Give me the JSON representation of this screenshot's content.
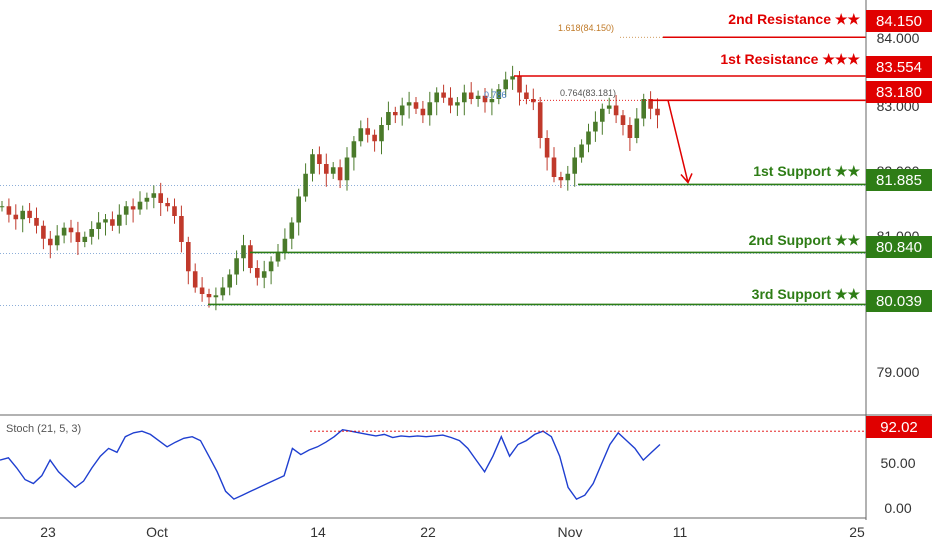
{
  "chart_data": {
    "type": "candlestick",
    "main_panel": {
      "y_ticks": [
        "84.000",
        "83.000",
        "82.000",
        "81.000",
        "79.000"
      ],
      "levels": [
        {
          "id": "r2",
          "label": "2nd Resistance ★★",
          "value": "84.150",
          "price": 84.15,
          "color": "#e00000"
        },
        {
          "id": "r1",
          "label": "1st Resistance ★★★",
          "value": "83.554",
          "price": 83.554,
          "color": "#e00000"
        },
        {
          "id": "pivot",
          "label": "",
          "value": "83.180",
          "price": 83.18,
          "color": "#e00000"
        },
        {
          "id": "s1",
          "label": "1st Support ★★",
          "value": "81.885",
          "price": 81.885,
          "color": "#2e7d16"
        },
        {
          "id": "s2",
          "label": "2nd Support ★★",
          "value": "80.840",
          "price": 80.84,
          "color": "#2e7d16"
        },
        {
          "id": "s3",
          "label": "3rd Support ★★",
          "value": "80.039",
          "price": 80.039,
          "color": "#2e7d16"
        }
      ],
      "fib_labels": [
        {
          "text": "1.618(84.150)",
          "color": "#c07a28"
        },
        {
          "text": "0.764(83.181)",
          "color": "#555555"
        },
        {
          "text": "0.786",
          "color": "#4a7fc1"
        }
      ]
    },
    "stoch_panel": {
      "title": "Stoch (21, 5, 3)",
      "y_ticks": [
        "50.00",
        "0.00"
      ],
      "marker": {
        "value": "92.02",
        "level": 92.02,
        "color": "#e00000"
      },
      "values": [
        55,
        58,
        45,
        30,
        25,
        35,
        55,
        40,
        30,
        20,
        28,
        45,
        60,
        70,
        65,
        85,
        90,
        92,
        88,
        80,
        72,
        78,
        83,
        85,
        80,
        60,
        40,
        15,
        5,
        10,
        15,
        20,
        25,
        30,
        35,
        70,
        62,
        68,
        72,
        78,
        85,
        94,
        92,
        90,
        88,
        86,
        88,
        84,
        86,
        85,
        86,
        85,
        86,
        87,
        84,
        80,
        70,
        55,
        40,
        60,
        85,
        60,
        75,
        80,
        88,
        92,
        85,
        60,
        20,
        5,
        10,
        25,
        50,
        75,
        90,
        80,
        70,
        55,
        65,
        75
      ]
    },
    "x_ticks": [
      "23",
      "Oct",
      "14",
      "22",
      "Nov",
      "11",
      "25"
    ],
    "closes": [
      81.55,
      81.42,
      81.35,
      81.48,
      81.37,
      81.25,
      81.05,
      80.95,
      81.1,
      81.22,
      81.15,
      81.0,
      81.08,
      81.2,
      81.3,
      81.35,
      81.25,
      81.42,
      81.55,
      81.5,
      81.62,
      81.68,
      81.75,
      81.6,
      81.55,
      81.4,
      81.0,
      80.55,
      80.3,
      80.2,
      80.15,
      80.18,
      80.3,
      80.5,
      80.75,
      80.95,
      80.6,
      80.45,
      80.55,
      80.7,
      80.85,
      81.05,
      81.3,
      81.7,
      82.05,
      82.35,
      82.2,
      82.05,
      82.15,
      81.95,
      82.3,
      82.55,
      82.75,
      82.65,
      82.55,
      82.8,
      83.0,
      82.95,
      83.1,
      83.15,
      83.05,
      82.95,
      83.15,
      83.3,
      83.22,
      83.1,
      83.15,
      83.3,
      83.2,
      83.25,
      83.15,
      83.2,
      83.35,
      83.5,
      83.55,
      83.3,
      83.2,
      83.15,
      82.6,
      82.3,
      82.0,
      81.95,
      82.05,
      82.3,
      82.5,
      82.7,
      82.85,
      83.05,
      83.1,
      82.95,
      82.8,
      82.6,
      82.9,
      83.2,
      83.05,
      82.95
    ]
  }
}
